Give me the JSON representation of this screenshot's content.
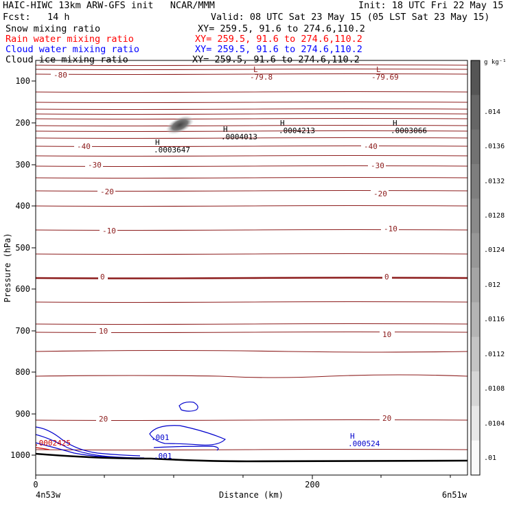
{
  "header": {
    "title_left": "HAIC-HIWC 13km ARW-GFS init   NCAR/MMM",
    "init": "Init: 18 UTC Fri 22 May 15",
    "fcst": "Fcst:   14 h",
    "valid": "Valid: 08 UTC Sat 23 May 15 (05 LST Sat 23 May 15)"
  },
  "fields": [
    {
      "name": "Snow mixing ratio",
      "xy": "XY= 259.5, 91.6 to 274.6,110.2",
      "color": "#000000"
    },
    {
      "name": "Rain water mixing ratio",
      "xy": "XY= 259.5, 91.6 to 274.6,110.2",
      "color": "#ff0000"
    },
    {
      "name": "Cloud water mixing ratio",
      "xy": "XY= 259.5, 91.6 to 274.6,110.2",
      "color": "#0000ff"
    },
    {
      "name": "Cloud ice mixing ratio",
      "xy": "XY= 259.5, 91.6 to 274.6,110.2",
      "color": "#000000"
    }
  ],
  "chart_data": {
    "type": "cross-section contour",
    "xlabel": "Distance (km)",
    "ylabel": "Pressure (hPa)",
    "x_ticks": [
      "0",
      "200"
    ],
    "y_ticks": [
      "100",
      "200",
      "300",
      "400",
      "500",
      "600",
      "700",
      "800",
      "900",
      "1000"
    ],
    "endpoints": {
      "left": "4n53w",
      "right": "6n51w"
    },
    "colorbar": {
      "unit": "g kg⁻¹",
      "labels": [
        ".014",
        ".0136",
        ".0132",
        ".0128",
        ".0124",
        ".012",
        ".0116",
        ".0112",
        ".0108",
        ".0104",
        ".01"
      ],
      "colors": [
        "#555555",
        "#666666",
        "#727272",
        "#7e7e7e",
        "#8a8a8a",
        "#979797",
        "#a5a5a5",
        "#b4b4b4",
        "#c4c4c4",
        "#d6d6d6",
        "#e8e8e8",
        "#fafafa"
      ]
    },
    "temperature_labels": [
      "-80",
      "-40",
      "-40",
      "-30",
      "-30",
      "-20",
      "-20",
      "-10",
      "-10",
      "0",
      "0",
      "10",
      "10",
      "20",
      "20"
    ],
    "extrema_labels": [
      {
        "sym": "L",
        "val": "-79.8",
        "color": "#8b1a1a"
      },
      {
        "sym": "L",
        "val": "-79.69",
        "color": "#8b1a1a"
      },
      {
        "sym": "H",
        "val": ".0004013",
        "color": "#000000"
      },
      {
        "sym": "H",
        "val": ".0004213",
        "color": "#000000"
      },
      {
        "sym": "H",
        "val": ".0003066",
        "color": "#000000"
      },
      {
        "sym": "H",
        "val": ".0003647",
        "color": "#000000"
      },
      {
        "sym": "H",
        "val": ".000524",
        "color": "#0000cc"
      }
    ],
    "cloud_water_labels": [
      ".001",
      ".001"
    ],
    "rain_label": ".0002425",
    "colors": {
      "temperature": "#8b1a1a",
      "cloud_water": "#0000cc",
      "rain": "#cc0000",
      "terrain": "#000000"
    }
  }
}
